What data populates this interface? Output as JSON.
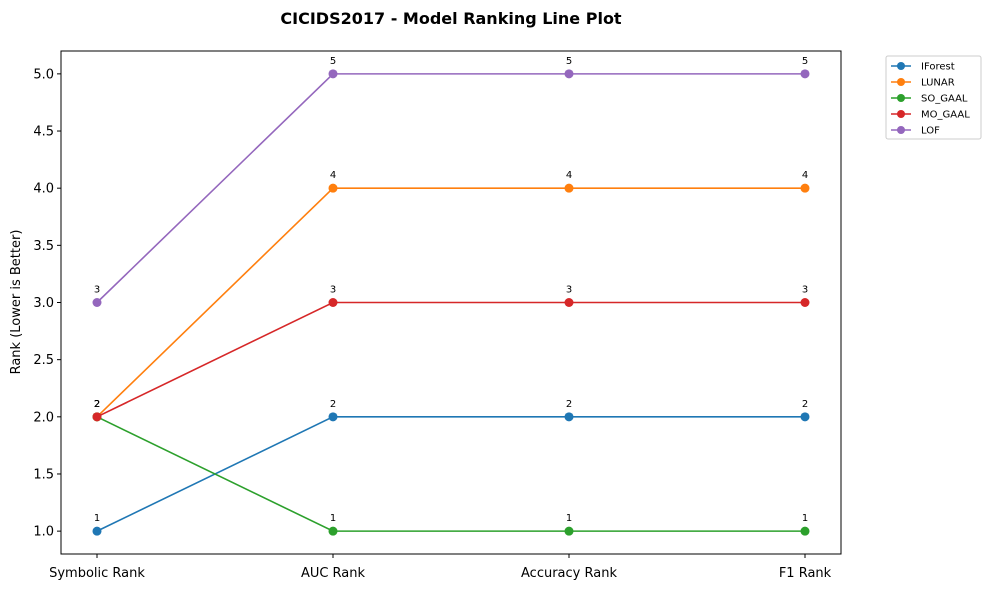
{
  "chart_data": {
    "type": "line",
    "title": "CICIDS2017 - Model Ranking Line Plot",
    "xlabel": "",
    "ylabel": "Rank (Lower is Better)",
    "categories": [
      "Symbolic Rank",
      "AUC Rank",
      "Accuracy Rank",
      "F1 Rank"
    ],
    "ylim": [
      0.8,
      5.2
    ],
    "yticks": [
      1.0,
      1.5,
      2.0,
      2.5,
      3.0,
      3.5,
      4.0,
      4.5,
      5.0
    ],
    "ytick_labels": [
      "1.0",
      "1.5",
      "2.0",
      "2.5",
      "3.0",
      "3.5",
      "4.0",
      "4.5",
      "5.0"
    ],
    "grid": false,
    "legend_position": "outside top-right",
    "series": [
      {
        "name": "IForest",
        "color": "#1f77b4",
        "values": [
          1,
          2,
          2,
          2
        ]
      },
      {
        "name": "LUNAR",
        "color": "#ff7f0e",
        "values": [
          2,
          4,
          4,
          4
        ]
      },
      {
        "name": "SO_GAAL",
        "color": "#2ca02c",
        "values": [
          2,
          1,
          1,
          1
        ]
      },
      {
        "name": "MO_GAAL",
        "color": "#d62728",
        "values": [
          2,
          3,
          3,
          3
        ]
      },
      {
        "name": "LOF",
        "color": "#9467bd",
        "values": [
          3,
          5,
          5,
          5
        ]
      }
    ]
  }
}
